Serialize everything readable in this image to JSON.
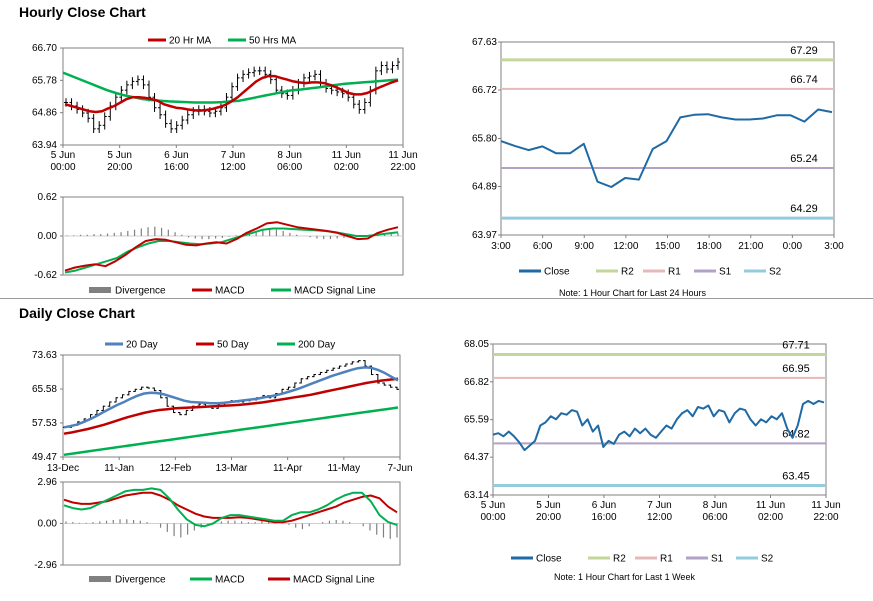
{
  "sections": {
    "hourly_title": "Hourly Close Chart",
    "daily_title": "Daily Close Chart"
  },
  "colors": {
    "close": "#1f6aa5",
    "r2": "#c3d69b",
    "r1": "#e6b9b8",
    "s1": "#b3a2c7",
    "s2": "#93cddd",
    "red": "#c00000",
    "green": "#00b050",
    "blue": "#4f81bd",
    "gray": "#808080",
    "candle": "#000000"
  },
  "chart_data": [
    {
      "id": "hourly-price",
      "type": "line",
      "title": "Hourly Close Chart",
      "legend": [
        "20 Hr MA",
        "50 Hrs MA"
      ],
      "yticks": [
        "66.70",
        "65.78",
        "64.86",
        "63.94"
      ],
      "ylim": [
        63.94,
        66.7
      ],
      "xticks": [
        {
          "l1": "5 Jun",
          "l2": "00:00"
        },
        {
          "l1": "5 Jun",
          "l2": "20:00"
        },
        {
          "l1": "6 Jun",
          "l2": "16:00"
        },
        {
          "l1": "7 Jun",
          "l2": "12:00"
        },
        {
          "l1": "8 Jun",
          "l2": "06:00"
        },
        {
          "l1": "11 Jun",
          "l2": "02:00"
        },
        {
          "l1": "11 Jun",
          "l2": "22:00"
        }
      ],
      "series": [
        {
          "name": "Close",
          "values": [
            65.15,
            65.05,
            64.95,
            64.85,
            64.7,
            64.4,
            64.5,
            64.75,
            65.05,
            65.3,
            65.5,
            65.65,
            65.75,
            65.8,
            65.65,
            65.3,
            65.0,
            64.8,
            64.55,
            64.4,
            64.5,
            64.65,
            64.8,
            64.9,
            64.95,
            64.9,
            64.85,
            64.9,
            65.0,
            65.3,
            65.6,
            65.85,
            65.95,
            66.0,
            66.05,
            66.05,
            65.95,
            65.8,
            65.5,
            65.4,
            65.35,
            65.5,
            65.7,
            65.85,
            65.9,
            65.95,
            65.7,
            65.55,
            65.5,
            65.45,
            65.4,
            65.3,
            65.1,
            64.95,
            65.15,
            65.5,
            66.05,
            66.2,
            66.1,
            66.2,
            66.3
          ]
        },
        {
          "name": "20 Hr MA",
          "values": [
            65.1,
            65.05,
            65.0,
            64.95,
            64.9,
            64.88,
            64.9,
            64.98,
            65.05,
            65.15,
            65.25,
            65.3,
            65.3,
            65.28,
            65.25,
            65.2,
            65.1,
            65.05,
            65.0,
            64.98,
            64.95,
            64.93,
            64.92,
            64.94,
            64.97,
            65.02,
            65.08,
            65.18,
            65.3,
            65.45,
            65.6,
            65.75,
            65.85,
            65.9,
            65.9,
            65.85,
            65.8,
            65.75,
            65.72,
            65.7,
            65.72,
            65.72,
            65.7,
            65.65,
            65.58,
            65.5,
            65.42,
            65.38,
            65.38,
            65.42,
            65.5,
            65.58,
            65.65,
            65.72,
            65.78
          ]
        },
        {
          "name": "50 Hrs MA",
          "values": [
            66.0,
            65.9,
            65.8,
            65.7,
            65.6,
            65.5,
            65.42,
            65.35,
            65.3,
            65.25,
            65.22,
            65.2,
            65.18,
            65.17,
            65.16,
            65.15,
            65.15,
            65.15,
            65.16,
            65.18,
            65.2,
            65.25,
            65.3,
            65.35,
            65.4,
            65.45,
            65.5,
            65.52,
            65.55,
            65.58,
            65.62,
            65.65,
            65.68,
            65.7,
            65.72,
            65.74,
            65.76,
            65.78,
            65.8
          ]
        }
      ]
    },
    {
      "id": "hourly-macd",
      "type": "line",
      "legend": [
        "Divergence",
        "MACD",
        "MACD Signal Line"
      ],
      "yticks": [
        "0.62",
        "0.00",
        "-0.62"
      ],
      "ylim": [
        -0.62,
        0.62
      ],
      "series": [
        {
          "name": "Divergence",
          "values": [
            0.01,
            0.01,
            0.02,
            0.02,
            0.03,
            0.03,
            0.04,
            0.05,
            0.06,
            0.08,
            0.1,
            0.12,
            0.14,
            0.15,
            0.13,
            0.1,
            0.06,
            0.02,
            -0.02,
            -0.04,
            -0.05,
            -0.05,
            -0.04,
            -0.03,
            -0.01,
            0.01,
            0.03,
            0.06,
            0.08,
            0.1,
            0.11,
            0.1,
            0.08,
            0.05,
            0.02,
            0.0,
            -0.02,
            -0.04,
            -0.05,
            -0.05,
            -0.04,
            -0.03,
            -0.02,
            -0.01,
            0.0,
            0.01,
            0.02,
            0.03,
            0.04,
            0.05
          ]
        },
        {
          "name": "MACD",
          "values": [
            -0.55,
            -0.5,
            -0.47,
            -0.45,
            -0.48,
            -0.4,
            -0.3,
            -0.18,
            -0.08,
            -0.05,
            -0.06,
            -0.1,
            -0.14,
            -0.15,
            -0.12,
            -0.1,
            -0.12,
            -0.05,
            0.05,
            0.12,
            0.2,
            0.22,
            0.18,
            0.14,
            0.12,
            0.1,
            0.08,
            0.05,
            0.0,
            -0.05,
            -0.04,
            0.05,
            0.1,
            0.14
          ]
        },
        {
          "name": "MACD Signal Line",
          "values": [
            -0.58,
            -0.55,
            -0.5,
            -0.45,
            -0.4,
            -0.35,
            -0.25,
            -0.18,
            -0.12,
            -0.08,
            -0.08,
            -0.1,
            -0.12,
            -0.13,
            -0.12,
            -0.1,
            -0.05,
            0.0,
            0.05,
            0.1,
            0.12,
            0.12,
            0.11,
            0.1,
            0.09,
            0.08,
            0.06,
            0.03,
            0.0,
            0.0,
            0.02,
            0.04,
            0.06
          ]
        }
      ]
    },
    {
      "id": "hourly-levels",
      "type": "line",
      "note": "Note: 1 Hour Chart for Last 24 Hours",
      "yticks": [
        "67.63",
        "66.72",
        "65.80",
        "64.89",
        "63.97"
      ],
      "ylim": [
        63.97,
        67.63
      ],
      "xticks": [
        "3:00",
        "6:00",
        "9:00",
        "12:00",
        "15:00",
        "18:00",
        "21:00",
        "0:00",
        "3:00"
      ],
      "levels": [
        {
          "name": "R2",
          "value": 67.29,
          "label": "67.29"
        },
        {
          "name": "R1",
          "value": 66.74,
          "label": "66.74"
        },
        {
          "name": "S1",
          "value": 65.24,
          "label": "65.24"
        },
        {
          "name": "S2",
          "value": 64.29,
          "label": "64.29"
        }
      ],
      "legend": [
        "Close",
        "R2",
        "R1",
        "S1",
        "S2"
      ],
      "series": [
        {
          "name": "Close",
          "values": [
            65.75,
            65.66,
            65.58,
            65.65,
            65.52,
            65.52,
            65.7,
            64.98,
            64.88,
            65.05,
            65.02,
            65.6,
            65.75,
            66.2,
            66.25,
            66.26,
            66.2,
            66.16,
            66.16,
            66.18,
            66.24,
            66.24,
            66.12,
            66.35,
            66.3
          ]
        }
      ]
    },
    {
      "id": "daily-price",
      "type": "line",
      "title": "Daily Close Chart",
      "legend": [
        "20 Day",
        "50 Day",
        "200 Day"
      ],
      "yticks": [
        "73.63",
        "65.58",
        "57.53",
        "49.47"
      ],
      "ylim": [
        49.47,
        73.63
      ],
      "xticks": [
        "13-Dec",
        "11-Jan",
        "12-Feb",
        "13-Mar",
        "11-Apr",
        "11-May",
        "7-Jun"
      ],
      "series": [
        {
          "name": "Close",
          "values": [
            56.5,
            57.0,
            57.8,
            58.5,
            59.5,
            60.5,
            61.5,
            62.5,
            63.5,
            64.2,
            65.0,
            65.5,
            66.0,
            65.8,
            65.2,
            63.5,
            61.5,
            60.0,
            59.5,
            60.5,
            61.5,
            62.0,
            61.5,
            61.0,
            61.8,
            62.5,
            62.8,
            62.5,
            62.8,
            63.0,
            63.5,
            64.0,
            63.5,
            64.5,
            65.5,
            66.0,
            67.0,
            68.0,
            68.5,
            69.0,
            69.5,
            70.0,
            70.5,
            71.0,
            71.5,
            72.0,
            72.3,
            71.0,
            69.0,
            67.0,
            66.5,
            66.0,
            65.5
          ]
        },
        {
          "name": "20 Day",
          "values": [
            56.5,
            56.8,
            57.2,
            57.8,
            58.5,
            59.3,
            60.2,
            61.0,
            61.8,
            62.5,
            63.3,
            64.0,
            64.5,
            64.7,
            64.6,
            64.3,
            63.8,
            63.3,
            62.8,
            62.5,
            62.4,
            62.3,
            62.2,
            62.2,
            62.3,
            62.5,
            62.7,
            62.9,
            63.1,
            63.3,
            63.6,
            63.9,
            64.2,
            64.6,
            65.1,
            65.6,
            66.2,
            66.8,
            67.4,
            68.0,
            68.6,
            69.1,
            69.6,
            70.1,
            70.5,
            70.7,
            70.6,
            70.1,
            69.4,
            68.5,
            67.6
          ]
        },
        {
          "name": "50 Day",
          "values": [
            55.0,
            55.3,
            55.7,
            56.1,
            56.6,
            57.1,
            57.7,
            58.3,
            58.9,
            59.4,
            59.9,
            60.3,
            60.6,
            60.8,
            61.0,
            61.1,
            61.2,
            61.3,
            61.4,
            61.5,
            61.6,
            61.7,
            61.8,
            62.0,
            62.2,
            62.4,
            62.7,
            63.0,
            63.3,
            63.6,
            63.9,
            64.2,
            64.6,
            65.0,
            65.4,
            65.8,
            66.2,
            66.6,
            67.0,
            67.3,
            67.6,
            67.8,
            68.0
          ]
        },
        {
          "name": "200 Day",
          "values": [
            50.0,
            50.4,
            50.8,
            51.2,
            51.6,
            52.0,
            52.4,
            52.8,
            53.2,
            53.6,
            54.0,
            54.4,
            54.8,
            55.2,
            55.6,
            56.0,
            56.4,
            56.8,
            57.2,
            57.6,
            58.0,
            58.4,
            58.8,
            59.2,
            59.6,
            60.0,
            60.4,
            60.8,
            61.2
          ]
        }
      ]
    },
    {
      "id": "daily-macd",
      "type": "line",
      "legend": [
        "Divergence",
        "MACD",
        "MACD Signal Line"
      ],
      "yticks": [
        "2.96",
        "0.00",
        "-2.96"
      ],
      "ylim": [
        -2.96,
        2.96
      ],
      "series": [
        {
          "name": "Divergence",
          "values": [
            0.15,
            0.1,
            0.05,
            0.05,
            0.1,
            0.15,
            0.2,
            0.25,
            0.3,
            0.3,
            0.25,
            0.2,
            0.1,
            0.0,
            -0.3,
            -0.6,
            -0.9,
            -1.0,
            -0.8,
            -0.5,
            -0.3,
            -0.1,
            0.05,
            0.15,
            0.2,
            0.2,
            0.15,
            0.1,
            0.1,
            0.2,
            0.25,
            0.2,
            0.1,
            -0.1,
            -0.3,
            -0.4,
            -0.2,
            0.0,
            0.1,
            0.2,
            0.25,
            0.2,
            0.1,
            0.0,
            -0.2,
            -0.5,
            -0.8,
            -1.0,
            -1.1,
            -1.0
          ]
        },
        {
          "name": "MACD",
          "values": [
            1.3,
            1.1,
            1.0,
            1.1,
            1.4,
            1.7,
            2.0,
            2.3,
            2.4,
            2.4,
            2.5,
            2.4,
            1.8,
            1.0,
            0.3,
            -0.1,
            -0.2,
            0.0,
            0.4,
            0.6,
            0.6,
            0.5,
            0.4,
            0.3,
            0.2,
            0.2,
            0.6,
            0.8,
            0.8,
            1.0,
            1.3,
            1.7,
            2.0,
            2.2,
            2.2,
            1.6,
            0.6,
            0.1,
            -0.1
          ]
        },
        {
          "name": "MACD Signal Line",
          "values": [
            1.7,
            1.5,
            1.4,
            1.4,
            1.5,
            1.6,
            1.8,
            2.0,
            2.1,
            2.2,
            2.2,
            2.0,
            1.7,
            1.3,
            1.0,
            0.7,
            0.5,
            0.4,
            0.4,
            0.4,
            0.45,
            0.4,
            0.3,
            0.2,
            0.1,
            0.1,
            0.2,
            0.4,
            0.6,
            0.8,
            1.0,
            1.2,
            1.5,
            1.7,
            1.9,
            2.0,
            1.8,
            1.2,
            0.8
          ]
        }
      ]
    },
    {
      "id": "daily-levels",
      "type": "line",
      "note": "Note: 1 Hour Chart for Last 1 Week",
      "yticks": [
        "68.05",
        "66.82",
        "65.59",
        "64.37",
        "63.14"
      ],
      "ylim": [
        63.14,
        68.05
      ],
      "xticks": [
        {
          "l1": "5 Jun",
          "l2": "00:00"
        },
        {
          "l1": "5 Jun",
          "l2": "20:00"
        },
        {
          "l1": "6 Jun",
          "l2": "16:00"
        },
        {
          "l1": "7 Jun",
          "l2": "12:00"
        },
        {
          "l1": "8 Jun",
          "l2": "06:00"
        },
        {
          "l1": "11 Jun",
          "l2": "02:00"
        },
        {
          "l1": "11 Jun",
          "l2": "22:00"
        }
      ],
      "levels": [
        {
          "name": "R2",
          "value": 67.71,
          "label": "67.71"
        },
        {
          "name": "R1",
          "value": 66.95,
          "label": "66.95"
        },
        {
          "name": "S1",
          "value": 64.82,
          "label": "64.82"
        },
        {
          "name": "S2",
          "value": 63.45,
          "label": "63.45"
        }
      ],
      "legend": [
        "Close",
        "R2",
        "R1",
        "S1",
        "S2"
      ],
      "series": [
        {
          "name": "Close",
          "values": [
            65.1,
            65.15,
            65.05,
            65.2,
            65.05,
            64.85,
            64.6,
            64.75,
            64.9,
            65.4,
            65.5,
            65.7,
            65.6,
            65.8,
            65.75,
            65.9,
            65.85,
            65.4,
            65.6,
            65.2,
            65.4,
            64.7,
            64.9,
            64.8,
            65.1,
            65.2,
            65.05,
            65.3,
            65.15,
            65.3,
            65.1,
            65.0,
            65.2,
            65.4,
            65.3,
            65.6,
            65.8,
            65.9,
            65.7,
            66.0,
            65.95,
            66.05,
            65.7,
            65.9,
            65.85,
            65.5,
            65.8,
            65.95,
            65.9,
            65.6,
            65.4,
            65.6,
            65.5,
            65.7,
            65.6,
            65.8,
            65.3,
            65.0,
            65.4,
            66.1,
            66.2,
            66.1,
            66.2,
            66.15
          ]
        }
      ]
    }
  ]
}
